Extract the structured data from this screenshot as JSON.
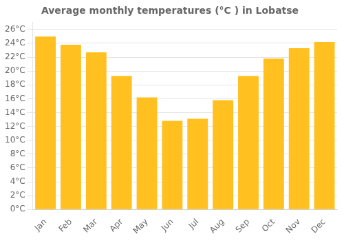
{
  "chart_data": {
    "type": "bar",
    "title": "Average monthly temperatures (°C ) in Lobatse",
    "categories": [
      "Jan",
      "Feb",
      "Mar",
      "Apr",
      "May",
      "Jun",
      "Jul",
      "Aug",
      "Sep",
      "Oct",
      "Nov",
      "Dec"
    ],
    "values": [
      25.0,
      23.8,
      22.7,
      19.3,
      16.2,
      12.8,
      13.1,
      15.8,
      19.3,
      21.8,
      23.3,
      24.2
    ],
    "color": "#FFC020",
    "ylim": [
      0,
      27
    ],
    "yticks": [
      {
        "value": 0,
        "label": "0°C"
      },
      {
        "value": 2,
        "label": "2°C"
      },
      {
        "value": 4,
        "label": "4°C"
      },
      {
        "value": 6,
        "label": "6°C"
      },
      {
        "value": 8,
        "label": "8°C"
      },
      {
        "value": 10,
        "label": "10°C"
      },
      {
        "value": 12,
        "label": "12°C"
      },
      {
        "value": 14,
        "label": "14°C"
      },
      {
        "value": 16,
        "label": "16°C"
      },
      {
        "value": 18,
        "label": "18°C"
      },
      {
        "value": 20,
        "label": "20°C"
      },
      {
        "value": 22,
        "label": "22°C"
      },
      {
        "value": 24,
        "label": "24°C"
      },
      {
        "value": 26,
        "label": "26°C"
      }
    ],
    "grid": true
  }
}
